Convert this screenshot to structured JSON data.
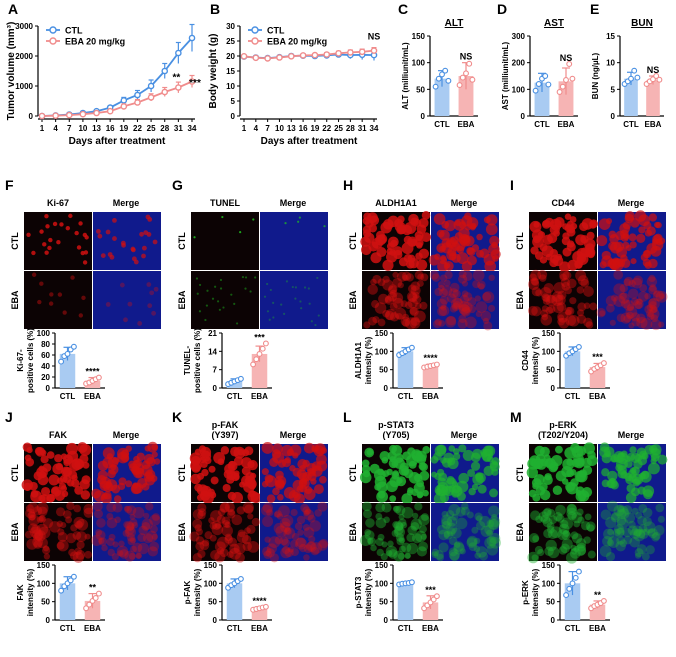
{
  "panels": {
    "A": {
      "label": "A"
    },
    "B": {
      "label": "B"
    },
    "C": {
      "label": "C"
    },
    "D": {
      "label": "D"
    },
    "E": {
      "label": "E"
    },
    "F": {
      "label": "F"
    },
    "G": {
      "label": "G"
    },
    "H": {
      "label": "H"
    },
    "I": {
      "label": "I"
    },
    "J": {
      "label": "J"
    },
    "K": {
      "label": "K"
    },
    "L": {
      "label": "L"
    },
    "M": {
      "label": "M"
    }
  },
  "colors": {
    "ctl": "#4a90e2",
    "eba": "#f08c8c",
    "ctl_fill": "#a9cbf2",
    "eba_fill": "#f6b4b4"
  },
  "chart_data": [
    {
      "id": "A",
      "type": "line",
      "title": "",
      "xlabel": "Days after treatment",
      "ylabel": "Tumor volume (mm³)",
      "x": [
        1,
        4,
        7,
        10,
        13,
        16,
        19,
        22,
        25,
        28,
        31,
        34
      ],
      "xticks": [
        "1",
        "4",
        "7",
        "10",
        "13",
        "16",
        "19",
        "22",
        "25",
        "28",
        "31",
        "34"
      ],
      "ylim": [
        0,
        3000
      ],
      "yticks": [
        "0",
        "1000",
        "2000",
        "3000"
      ],
      "series": [
        {
          "name": "CTL",
          "values": [
            0,
            20,
            50,
            100,
            160,
            280,
            520,
            700,
            1000,
            1500,
            2100,
            2600
          ],
          "err": [
            0,
            5,
            10,
            20,
            30,
            60,
            100,
            150,
            200,
            250,
            350,
            450
          ]
        },
        {
          "name": "EBA 20 mg/kg",
          "values": [
            0,
            10,
            30,
            60,
            100,
            160,
            320,
            450,
            620,
            800,
            950,
            1150
          ],
          "err": [
            0,
            5,
            10,
            15,
            20,
            40,
            80,
            100,
            120,
            150,
            180,
            200
          ]
        }
      ],
      "annotations": [
        "**",
        "***"
      ],
      "legend": "top-left"
    },
    {
      "id": "B",
      "type": "line",
      "title": "",
      "xlabel": "Days after treatment",
      "ylabel": "Body weight (g)",
      "x": [
        1,
        4,
        7,
        10,
        13,
        16,
        19,
        22,
        25,
        28,
        31,
        34
      ],
      "xticks": [
        "1",
        "4",
        "7",
        "10",
        "13",
        "16",
        "19",
        "22",
        "25",
        "28",
        "31",
        "34"
      ],
      "ylim": [
        0,
        30
      ],
      "yticks": [
        "0",
        "5",
        "10",
        "15",
        "20",
        "25",
        "30"
      ],
      "series": [
        {
          "name": "CTL",
          "values": [
            19.8,
            19.5,
            19.3,
            19.6,
            20.0,
            20.1,
            20.0,
            20.2,
            20.5,
            20.3,
            20.4,
            20.3
          ],
          "err": [
            0.4,
            0.4,
            0.4,
            0.5,
            0.5,
            0.6,
            0.6,
            0.7,
            0.8,
            1.2,
            1.6,
            1.8
          ]
        },
        {
          "name": "EBA 20 mg/kg",
          "values": [
            19.9,
            19.4,
            19.2,
            19.5,
            19.9,
            20.2,
            20.3,
            20.5,
            20.9,
            21.2,
            21.4,
            21.8
          ],
          "err": [
            0.3,
            0.3,
            0.4,
            0.4,
            0.5,
            0.5,
            0.5,
            0.6,
            0.7,
            0.8,
            0.9,
            1.0
          ]
        }
      ],
      "annotations": [
        "NS"
      ],
      "legend": "top-left"
    },
    {
      "id": "C",
      "type": "bar",
      "title": "ALT",
      "ylabel": "ALT (milliunit/mL)",
      "categories": [
        "CTL",
        "EBA"
      ],
      "values": [
        70,
        75
      ],
      "err": [
        15,
        25
      ],
      "points": [
        [
          55,
          70,
          78,
          85,
          66
        ],
        [
          58,
          72,
          80,
          98,
          68
        ]
      ],
      "ylim": [
        0,
        150
      ],
      "yticks": [
        "0",
        "50",
        "100",
        "150"
      ],
      "annotation": "NS"
    },
    {
      "id": "D",
      "type": "bar",
      "title": "AST",
      "ylabel": "AST (milliunit/mL)",
      "categories": [
        "CTL",
        "EBA"
      ],
      "values": [
        125,
        130
      ],
      "err": [
        35,
        50
      ],
      "points": [
        [
          95,
          120,
          140,
          150,
          118
        ],
        [
          90,
          110,
          135,
          195,
          140
        ]
      ],
      "ylim": [
        0,
        300
      ],
      "yticks": [
        "0",
        "100",
        "200",
        "300"
      ],
      "annotation": "NS"
    },
    {
      "id": "E",
      "type": "bar",
      "title": "BUN",
      "ylabel": "BUN (ng/µL)",
      "categories": [
        "CTL",
        "EBA"
      ],
      "values": [
        7,
        6.7
      ],
      "err": [
        1.2,
        0.8
      ],
      "points": [
        [
          6,
          6.5,
          7,
          8.5,
          7.2
        ],
        [
          6,
          6.5,
          6.9,
          7.5,
          6.8
        ]
      ],
      "ylim": [
        0,
        15
      ],
      "yticks": [
        "0",
        "5",
        "10",
        "15"
      ],
      "annotation": "NS"
    },
    {
      "id": "F",
      "type": "bar",
      "ylabel": "Ki-67-positive cells (%)",
      "categories": [
        "CTL",
        "EBA"
      ],
      "values": [
        62,
        13
      ],
      "err": [
        12,
        6
      ],
      "points": [
        [
          48,
          58,
          62,
          70,
          75
        ],
        [
          8,
          10,
          13,
          16,
          19
        ]
      ],
      "ylim": [
        0,
        100
      ],
      "yticks": [
        "0",
        "20",
        "40",
        "60",
        "80",
        "100"
      ],
      "annotation": "****"
    },
    {
      "id": "G",
      "type": "bar",
      "ylabel": "TUNEL-positive cells (%)",
      "categories": [
        "CTL",
        "EBA"
      ],
      "values": [
        2.5,
        13
      ],
      "err": [
        1,
        3
      ],
      "points": [
        [
          1.5,
          2,
          2.5,
          3,
          3.5
        ],
        [
          9,
          11,
          13,
          15,
          17
        ]
      ],
      "ylim": [
        0,
        21
      ],
      "yticks": [
        "0",
        "7",
        "14",
        "21"
      ],
      "annotation": "***"
    },
    {
      "id": "H",
      "type": "bar",
      "ylabel": "ALDH1A1 intensity (%)",
      "categories": [
        "CTL",
        "EBA"
      ],
      "values": [
        100,
        60
      ],
      "err": [
        10,
        5
      ],
      "points": [
        [
          90,
          95,
          100,
          105,
          110
        ],
        [
          56,
          58,
          60,
          62,
          64
        ]
      ],
      "ylim": [
        0,
        150
      ],
      "yticks": [
        "0",
        "50",
        "100",
        "150"
      ],
      "annotation": "****"
    },
    {
      "id": "I",
      "type": "bar",
      "ylabel": "CD44 intensity (%)",
      "categories": [
        "CTL",
        "EBA"
      ],
      "values": [
        100,
        57
      ],
      "err": [
        12,
        10
      ],
      "points": [
        [
          88,
          95,
          100,
          106,
          112
        ],
        [
          45,
          52,
          57,
          62,
          68
        ]
      ],
      "ylim": [
        0,
        150
      ],
      "yticks": [
        "0",
        "50",
        "100",
        "150"
      ],
      "annotation": "***"
    },
    {
      "id": "J",
      "type": "bar",
      "ylabel": "FAK intensity (%)",
      "categories": [
        "CTL",
        "EBA"
      ],
      "values": [
        100,
        52
      ],
      "err": [
        18,
        20
      ],
      "points": [
        [
          80,
          92,
          100,
          108,
          118
        ],
        [
          32,
          42,
          52,
          60,
          72
        ]
      ],
      "ylim": [
        0,
        150
      ],
      "yticks": [
        "0",
        "50",
        "100",
        "150"
      ],
      "annotation": "**"
    },
    {
      "id": "K",
      "type": "bar",
      "ylabel": "p-FAK intensity (%)",
      "categories": [
        "CTL",
        "EBA"
      ],
      "values": [
        100,
        32
      ],
      "err": [
        12,
        4
      ],
      "points": [
        [
          88,
          95,
          100,
          106,
          112
        ],
        [
          28,
          30,
          32,
          34,
          36
        ]
      ],
      "ylim": [
        0,
        150
      ],
      "yticks": [
        "0",
        "50",
        "100",
        "150"
      ],
      "annotation": "****"
    },
    {
      "id": "L",
      "type": "bar",
      "ylabel": "p-STAT3 intensity (%)",
      "categories": [
        "CTL",
        "EBA"
      ],
      "values": [
        100,
        48
      ],
      "err": [
        4,
        18
      ],
      "points": [
        [
          97,
          99,
          100,
          101,
          103
        ],
        [
          32,
          40,
          48,
          56,
          65
        ]
      ],
      "ylim": [
        0,
        150
      ],
      "yticks": [
        "0",
        "50",
        "100",
        "150"
      ],
      "annotation": "***"
    },
    {
      "id": "M",
      "type": "bar",
      "ylabel": "p-ERK intensity (%)",
      "categories": [
        "CTL",
        "EBA"
      ],
      "values": [
        100,
        42
      ],
      "err": [
        32,
        10
      ],
      "points": [
        [
          68,
          85,
          100,
          115,
          132
        ],
        [
          32,
          38,
          42,
          46,
          52
        ]
      ],
      "ylim": [
        0,
        150
      ],
      "yticks": [
        "0",
        "50",
        "100",
        "150"
      ],
      "annotation": "**"
    }
  ],
  "micro": [
    {
      "id": "F",
      "stain": "Ki-67",
      "merge": "Merge",
      "rows": [
        "CTL",
        "EBA"
      ],
      "stain_color": "#d01010"
    },
    {
      "id": "G",
      "stain": "TUNEL",
      "merge": "Merge",
      "rows": [
        "CTL",
        "EBA"
      ],
      "stain_color": "#20c020"
    },
    {
      "id": "H",
      "stain": "ALDH1A1",
      "merge": "Merge",
      "rows": [
        "CTL",
        "EBA"
      ],
      "stain_color": "#d01010"
    },
    {
      "id": "I",
      "stain": "CD44",
      "merge": "Merge",
      "rows": [
        "CTL",
        "EBA"
      ],
      "stain_color": "#d01010"
    },
    {
      "id": "J",
      "stain": "FAK",
      "merge": "Merge",
      "rows": [
        "CTL",
        "EBA"
      ],
      "stain_color": "#d01010"
    },
    {
      "id": "K",
      "stain": "p-FAK\n(Y397)",
      "merge": "Merge",
      "rows": [
        "CTL",
        "EBA"
      ],
      "stain_color": "#d01010"
    },
    {
      "id": "L",
      "stain": "p-STAT3\n(Y705)",
      "merge": "Merge",
      "rows": [
        "CTL",
        "EBA"
      ],
      "stain_color": "#20b030"
    },
    {
      "id": "M",
      "stain": "p-ERK\n(T202/Y204)",
      "merge": "Merge",
      "rows": [
        "CTL",
        "EBA"
      ],
      "stain_color": "#20b030"
    }
  ]
}
